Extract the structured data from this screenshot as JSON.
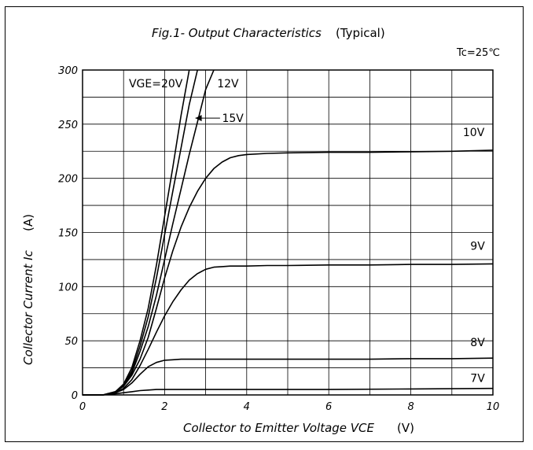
{
  "chart_data": {
    "type": "line",
    "title": "Fig.1- Output Characteristics",
    "title_suffix": "(Typical)",
    "condition": "Tc=25℃",
    "xlabel": "Collector to Emitter Voltage VCE",
    "xlabel_unit": "(V)",
    "ylabel": "Collector Current Ic",
    "ylabel_unit": "(A)",
    "xlim": [
      0,
      10
    ],
    "ylim": [
      0,
      300
    ],
    "xticks": [
      0,
      2,
      4,
      6,
      8,
      10
    ],
    "yticks": [
      0,
      50,
      100,
      150,
      200,
      250,
      300
    ],
    "grid": true,
    "series": [
      {
        "name": "VGE=20V",
        "x": [
          0,
          0.5,
          0.8,
          1.0,
          1.2,
          1.4,
          1.6,
          1.8,
          2.0,
          2.2,
          2.4,
          2.6
        ],
        "y": [
          0,
          0,
          3,
          10,
          25,
          50,
          80,
          120,
          165,
          210,
          258,
          300
        ]
      },
      {
        "name": "15V",
        "x": [
          0,
          0.5,
          0.8,
          1.0,
          1.2,
          1.4,
          1.6,
          1.8,
          2.0,
          2.2,
          2.4,
          2.6,
          2.8
        ],
        "y": [
          0,
          0,
          3,
          9,
          22,
          45,
          72,
          108,
          148,
          188,
          228,
          268,
          300
        ]
      },
      {
        "name": "12V",
        "x": [
          0,
          0.5,
          0.8,
          1.0,
          1.2,
          1.4,
          1.6,
          1.8,
          2.0,
          2.2,
          2.4,
          2.6,
          2.8,
          3.0,
          3.2
        ],
        "y": [
          0,
          0,
          3,
          8,
          20,
          40,
          63,
          92,
          125,
          158,
          190,
          222,
          252,
          282,
          300
        ]
      },
      {
        "name": "10V",
        "x": [
          0,
          0.5,
          0.8,
          1.0,
          1.2,
          1.4,
          1.6,
          1.8,
          2.0,
          2.2,
          2.4,
          2.6,
          2.8,
          3.0,
          3.2,
          3.4,
          3.6,
          3.8,
          4.0,
          4.5,
          5,
          6,
          7,
          8,
          9,
          10
        ],
        "y": [
          0,
          0,
          3,
          8,
          18,
          33,
          53,
          80,
          108,
          133,
          155,
          173,
          188,
          200,
          209,
          215,
          219,
          221,
          222,
          223,
          223.5,
          224,
          224,
          224.5,
          225,
          226
        ]
      },
      {
        "name": "9V",
        "x": [
          0,
          0.5,
          0.8,
          1.0,
          1.2,
          1.4,
          1.6,
          1.8,
          2.0,
          2.2,
          2.4,
          2.6,
          2.8,
          3.0,
          3.2,
          3.4,
          3.6,
          3.8,
          4.0,
          4.5,
          5,
          6,
          7,
          8,
          9,
          10
        ],
        "y": [
          0,
          0,
          2,
          6,
          14,
          27,
          42,
          58,
          73,
          86,
          97,
          106,
          112,
          116,
          118,
          118.5,
          119,
          119,
          119,
          119.5,
          119.5,
          120,
          120,
          120.5,
          120.5,
          121
        ]
      },
      {
        "name": "8V",
        "x": [
          0,
          0.5,
          0.8,
          1.0,
          1.2,
          1.4,
          1.6,
          1.8,
          2.0,
          2.2,
          2.4,
          3,
          4,
          5,
          6,
          7,
          8,
          9,
          10
        ],
        "y": [
          0,
          0,
          2,
          5,
          11,
          19,
          26,
          30,
          32,
          32.5,
          33,
          33,
          33,
          33,
          33,
          33,
          33.5,
          33.5,
          34
        ]
      },
      {
        "name": "7V",
        "x": [
          0,
          0.5,
          0.8,
          1.0,
          1.2,
          1.4,
          1.6,
          1.8,
          2.0,
          3,
          4,
          6,
          8,
          10
        ],
        "y": [
          0,
          0,
          1,
          2,
          3,
          4,
          4.5,
          5,
          5,
          5,
          5,
          5,
          5.5,
          6
        ]
      }
    ]
  }
}
